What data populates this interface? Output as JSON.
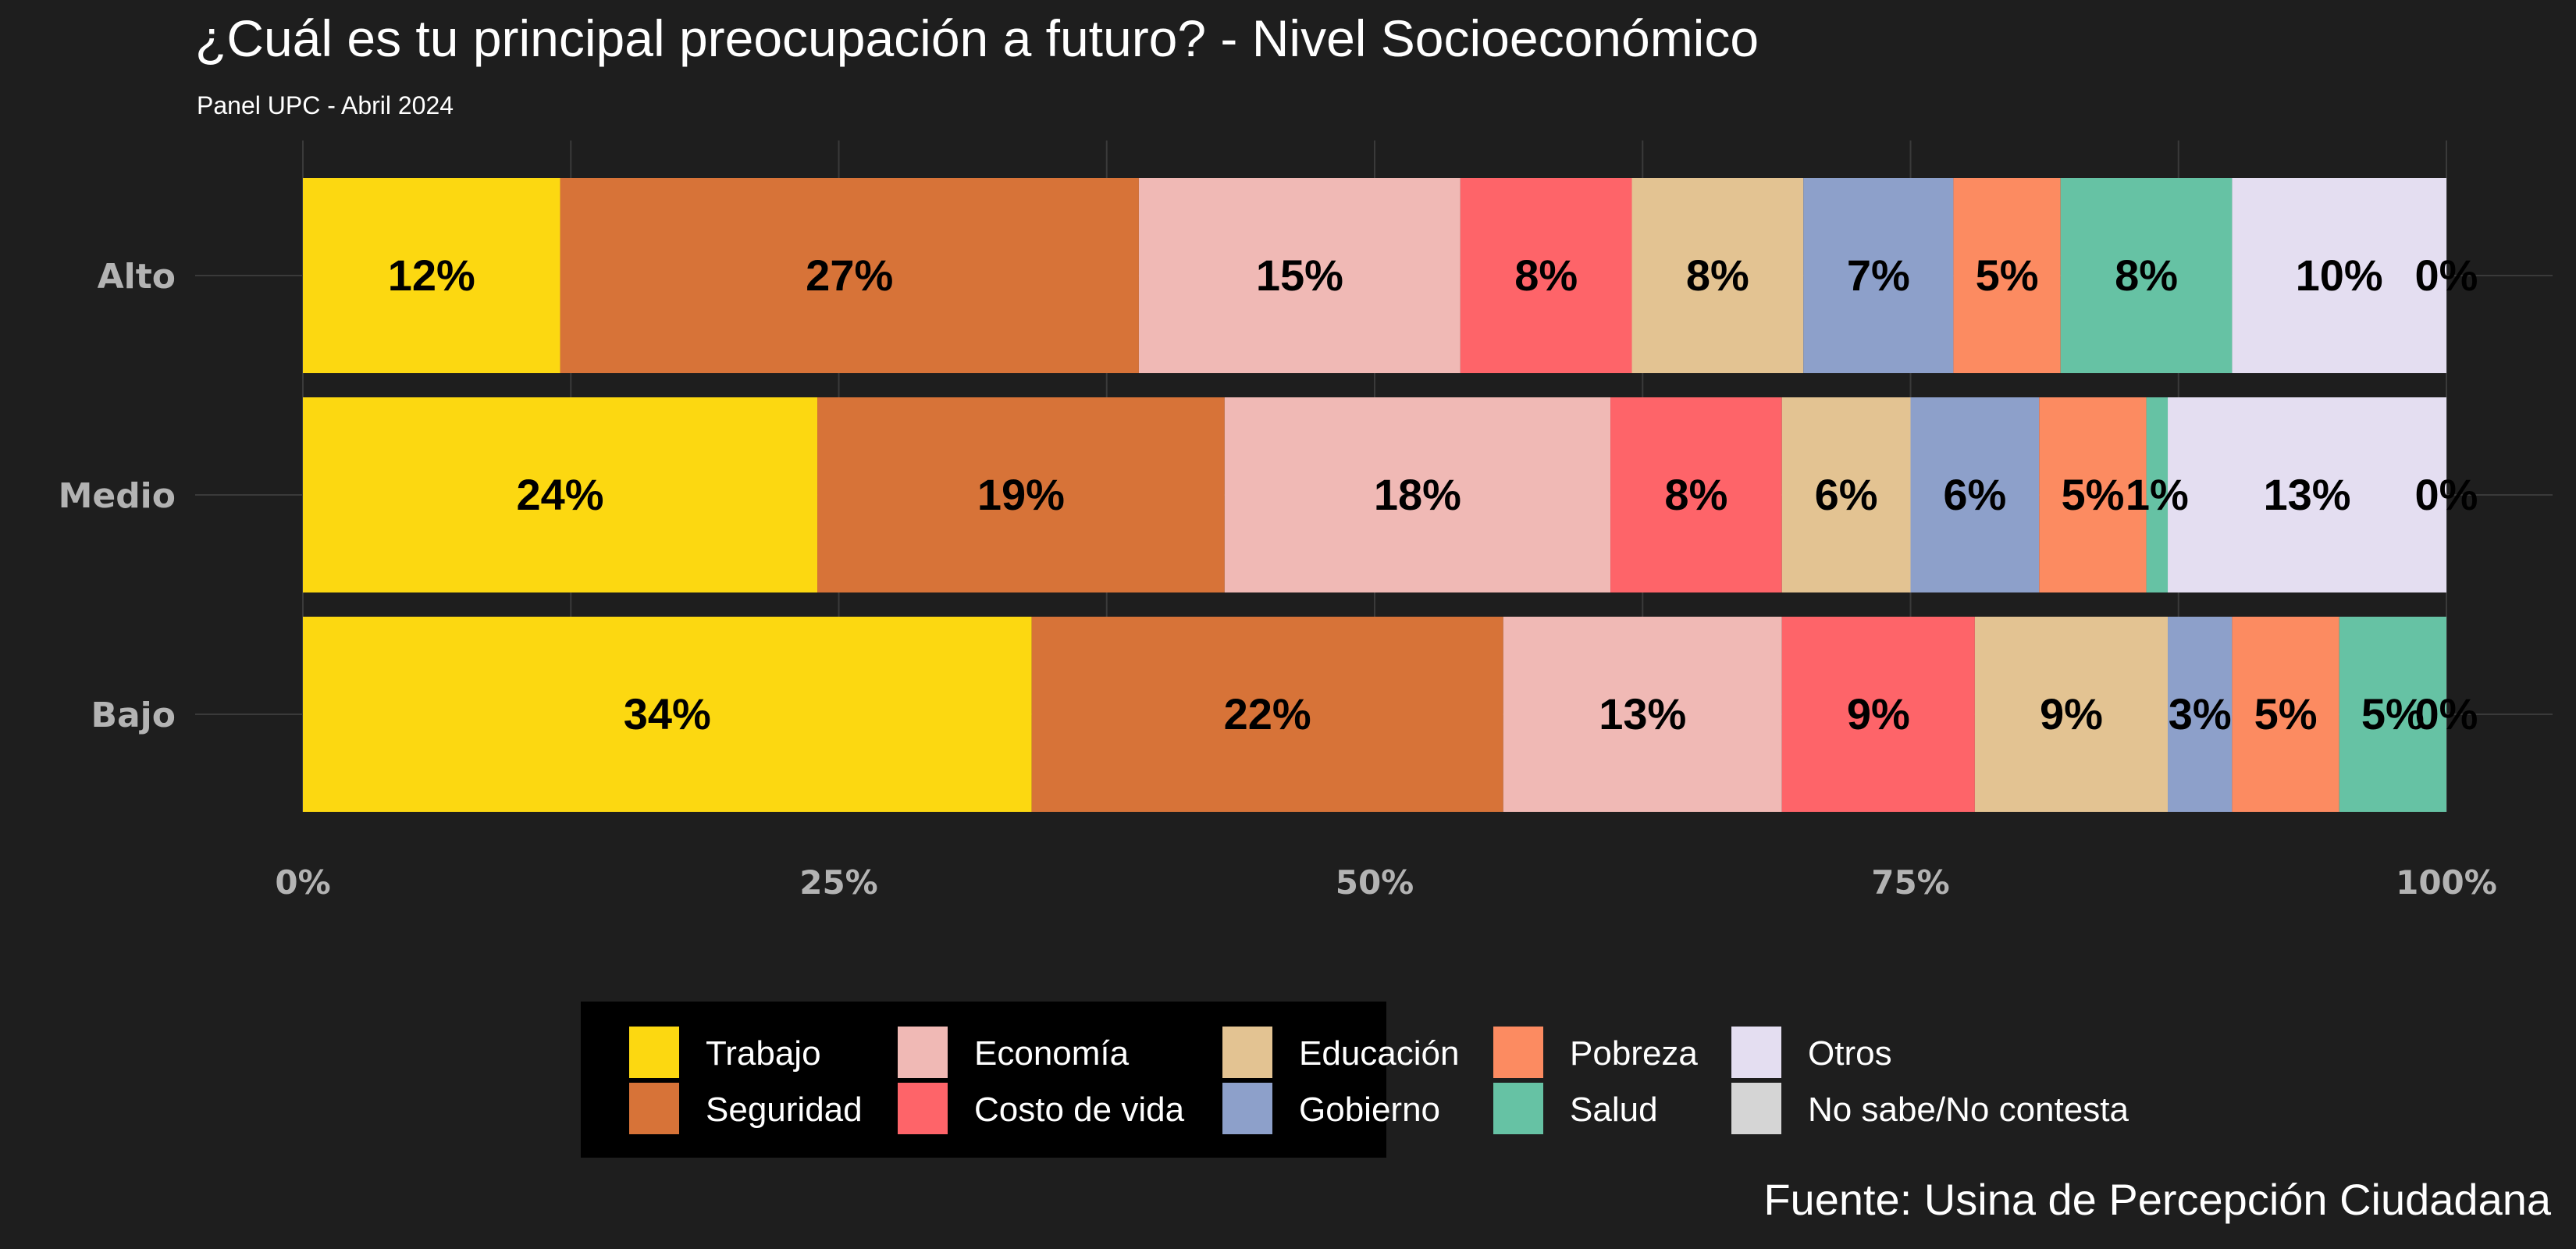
{
  "chart_data": {
    "type": "bar",
    "orientation": "horizontal",
    "stacked": true,
    "title": "¿Cuál es tu principal preocupación a futuro? - Nivel Socioeconómico",
    "subtitle": "Panel UPC - Abril 2024",
    "caption": "Fuente: Usina de Percepción Ciudadana",
    "categories": [
      "Alto",
      "Medio",
      "Bajo"
    ],
    "x_ticks": [
      "0%",
      "25%",
      "50%",
      "75%",
      "100%"
    ],
    "xlim": [
      0,
      100
    ],
    "grid": true,
    "legend_position": "bottom",
    "series": [
      {
        "name": "Trabajo",
        "color": "#fcd811",
        "values": [
          12,
          24,
          34
        ],
        "labels": [
          "12%",
          "24%",
          "34%"
        ]
      },
      {
        "name": "Seguridad",
        "color": "#d77338",
        "values": [
          27,
          19,
          22
        ],
        "labels": [
          "27%",
          "19%",
          "22%"
        ]
      },
      {
        "name": "Economía",
        "color": "#f0b9b5",
        "values": [
          15,
          18,
          13
        ],
        "labels": [
          "15%",
          "18%",
          "13%"
        ]
      },
      {
        "name": "Costo de vida",
        "color": "#fe6469",
        "values": [
          8,
          8,
          9
        ],
        "labels": [
          "8%",
          "8%",
          "9%"
        ]
      },
      {
        "name": "Educación",
        "color": "#e3c392",
        "values": [
          8,
          6,
          9
        ],
        "labels": [
          "8%",
          "6%",
          "9%"
        ]
      },
      {
        "name": "Gobierno",
        "color": "#8da0ca",
        "values": [
          7,
          6,
          3
        ],
        "labels": [
          "7%",
          "6%",
          "3%"
        ]
      },
      {
        "name": "Pobreza",
        "color": "#fc8b61",
        "values": [
          5,
          5,
          5
        ],
        "labels": [
          "5%",
          "5%",
          "5%"
        ]
      },
      {
        "name": "Salud",
        "color": "#66c2a4",
        "values": [
          8,
          1,
          5
        ],
        "labels": [
          "8%",
          "1%",
          "5%"
        ]
      },
      {
        "name": "Otros",
        "color": "#e4def1",
        "values": [
          10,
          13,
          0
        ],
        "labels": [
          "10%",
          "13%",
          ""
        ]
      },
      {
        "name": "No sabe/No contesta",
        "color": "#d5d5d5",
        "values": [
          0,
          0,
          0
        ],
        "labels": [
          "0%",
          "0%",
          "0%"
        ]
      }
    ]
  },
  "colors": {
    "background": "#1e1e1e",
    "grid": "#3a3a3a",
    "legend_background": "#000000"
  }
}
